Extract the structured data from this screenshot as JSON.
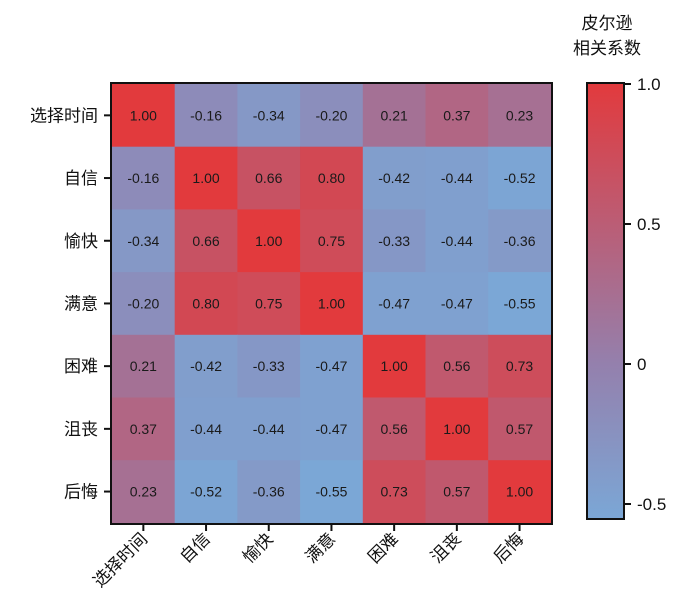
{
  "chart_data": {
    "type": "heatmap",
    "labels": [
      "选择时间",
      "自信",
      "愉快",
      "满意",
      "困难",
      "沮丧",
      "后悔"
    ],
    "matrix": [
      [
        "1.00",
        "-0.16",
        "-0.34",
        "-0.20",
        "0.21",
        "0.37",
        "0.23"
      ],
      [
        "-0.16",
        "1.00",
        "0.66",
        "0.80",
        "-0.42",
        "-0.44",
        "-0.52"
      ],
      [
        "-0.34",
        "0.66",
        "1.00",
        "0.75",
        "-0.33",
        "-0.44",
        "-0.36"
      ],
      [
        "-0.20",
        "0.80",
        "0.75",
        "1.00",
        "-0.47",
        "-0.47",
        "-0.55"
      ],
      [
        "0.21",
        "-0.42",
        "-0.33",
        "-0.47",
        "1.00",
        "0.56",
        "0.73"
      ],
      [
        "0.37",
        "-0.44",
        "-0.44",
        "-0.47",
        "0.56",
        "1.00",
        "0.57"
      ],
      [
        "0.23",
        "-0.52",
        "-0.36",
        "-0.55",
        "0.73",
        "0.57",
        "1.00"
      ]
    ],
    "colorbar": {
      "title_lines": [
        "皮尔逊",
        "相关系数"
      ],
      "ticks": [
        "1.0",
        "0.5",
        "0",
        "-0.5"
      ],
      "tick_values": [
        1.0,
        0.5,
        0.0,
        -0.5
      ],
      "range": [
        -0.55,
        1.0
      ],
      "color_low": "#7ba7d6",
      "color_mid": "#9480ad",
      "color_high": "#e23a3d"
    }
  }
}
